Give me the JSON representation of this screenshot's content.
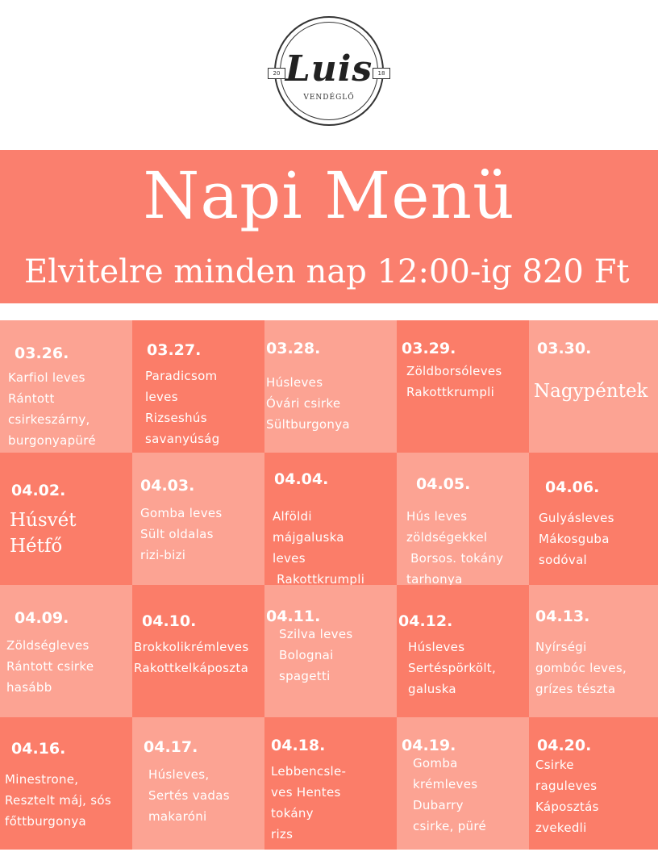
{
  "logo": {
    "script": "Luis",
    "year_left": "20",
    "year_right": "18",
    "subtitle": "VENDÉGLŐ"
  },
  "header": {
    "title": "Napi Menü",
    "subtitle": "Elvitelre minden nap 12:00-ig 820 Ft"
  },
  "colors": {
    "header_bg": "#fa7f6e",
    "cell_light": "#fca393",
    "cell_dark": "#fb7d69",
    "text": "#ffffff"
  },
  "days": [
    {
      "date": "03.26.",
      "items": [
        "Karfiol leves",
        "Rántott",
        "csirkeszárny,",
        "burgonyapüré"
      ]
    },
    {
      "date": "03.27.",
      "items": [
        "Paradicsom",
        "leves",
        "Rizseshús",
        "savanyúság"
      ]
    },
    {
      "date": "03.28.",
      "items": [
        "Húsleves",
        "Óvári csirke",
        "Sültburgonya"
      ]
    },
    {
      "date": "03.29.",
      "items": [
        "Zöldborsóleves",
        "Rakottkrumpli"
      ]
    },
    {
      "date": "03.30.",
      "holiday": [
        "Nagypéntek"
      ]
    },
    {
      "date": "04.02.",
      "holiday": [
        "Húsvét",
        "Hétfő"
      ]
    },
    {
      "date": "04.03.",
      "items": [
        "Gomba leves",
        "Sült oldalas",
        "rizi-bizi"
      ]
    },
    {
      "date": "04.04.",
      "items": [
        "Alföldi",
        "májgaluska",
        "leves",
        " Rakottkrumpli"
      ]
    },
    {
      "date": "04.05.",
      "items": [
        "Hús leves",
        "zöldségekkel",
        " Borsos. tokány",
        "tarhonya"
      ]
    },
    {
      "date": "04.06.",
      "items": [
        "Gulyásleves",
        "Mákosguba",
        "sodóval"
      ]
    },
    {
      "date": "04.09.",
      "items": [
        "Zöldségleves",
        "Rántott csirke",
        "hasább"
      ]
    },
    {
      "date": "04.10.",
      "items": [
        "Brokkolikrémleves",
        "Rakottkelkáposzta"
      ]
    },
    {
      "date": "04.11.",
      "items": [
        "Szilva leves",
        "Bolognai",
        "spagetti"
      ]
    },
    {
      "date": "04.12.",
      "items": [
        "Húsleves",
        "Sertéspörkölt,",
        "galuska"
      ]
    },
    {
      "date": "04.13.",
      "items": [
        "Nyírségi",
        "gombóc leves,",
        "grízes tészta"
      ]
    },
    {
      "date": "04.16.",
      "items": [
        "Minestrone,",
        "Resztelt máj, sós",
        "főttburgonya"
      ]
    },
    {
      "date": "04.17.",
      "items": [
        "Húsleves,",
        "Sertés vadas",
        "makaróni"
      ]
    },
    {
      "date": "04.18.",
      "items": [
        "Lebbencsle-",
        "ves Hentes",
        "tokány",
        "rizs"
      ]
    },
    {
      "date": "04.19.",
      "items": [
        "Gomba",
        "krémleves",
        "Dubarry",
        "csirke, püré"
      ]
    },
    {
      "date": "04.20.",
      "items": [
        "Csirke",
        "raguleves",
        "Káposztás",
        "zvekedli"
      ]
    }
  ]
}
